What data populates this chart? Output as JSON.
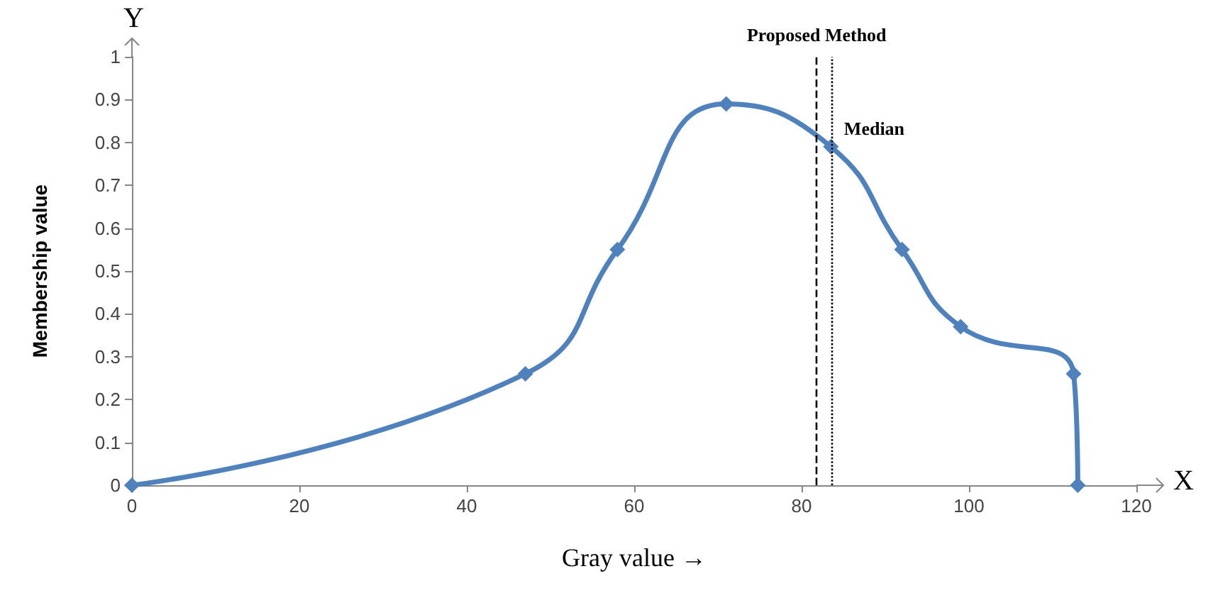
{
  "chart_data": {
    "type": "line",
    "xlabel": "Gray value →",
    "ylabel": "Membership value",
    "x": [
      0,
      47,
      58,
      71,
      83.5,
      92,
      99,
      112.5,
      113
    ],
    "series": [
      {
        "color": "#4f81bd",
        "values": [
          0,
          0.26,
          0.55,
          0.89,
          0.79,
          0.55,
          0.37,
          0.26,
          0
        ]
      }
    ],
    "xlim": [
      0,
      120
    ],
    "xticks": [
      0,
      20,
      40,
      60,
      80,
      100,
      120
    ],
    "ylim": [
      0,
      1
    ],
    "yticks": [
      0,
      0.1,
      0.2,
      0.3,
      0.4,
      0.5,
      0.6,
      0.7,
      0.8,
      0.9,
      1
    ],
    "ref_lines": [
      {
        "axis": "x",
        "value": 81.8,
        "label": "Proposed Method",
        "line_style": "dashed"
      },
      {
        "axis": "x",
        "value": 83.6,
        "label": "Median",
        "line_style": "dotted"
      }
    ],
    "annotations": [
      "Y",
      "X"
    ],
    "marker": "diamond",
    "line_style": "solid"
  }
}
